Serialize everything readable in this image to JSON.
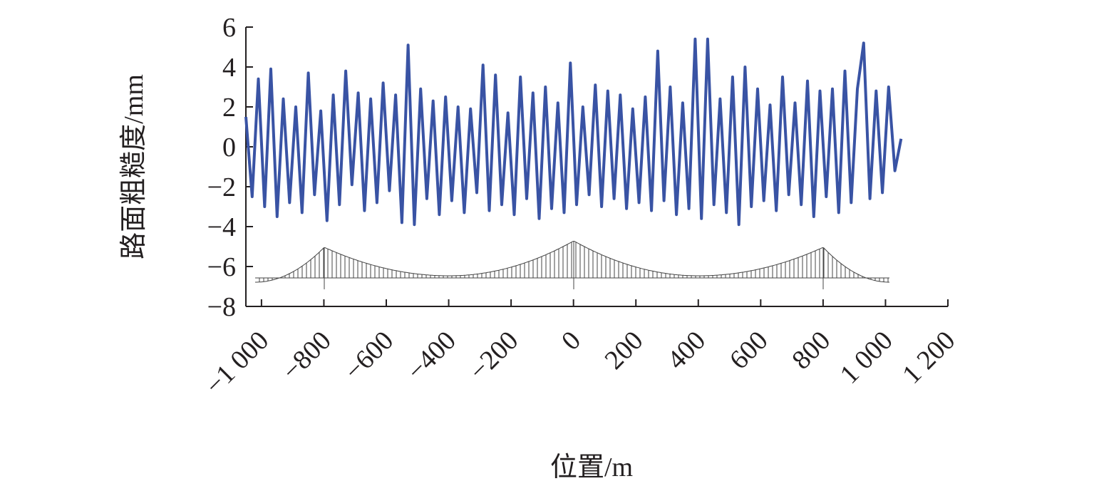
{
  "chart_data": {
    "type": "line",
    "xlabel": "位置/m",
    "ylabel": "路面粗糙度/mm",
    "xlim": [
      -1050,
      1200
    ],
    "ylim": [
      -8,
      6
    ],
    "xticks": [
      {
        "value": -1000,
        "label": "−1 000"
      },
      {
        "value": -800,
        "label": "−800"
      },
      {
        "value": -600,
        "label": "−600"
      },
      {
        "value": -400,
        "label": "−400"
      },
      {
        "value": -200,
        "label": "−200"
      },
      0,
      200,
      400,
      600,
      800,
      {
        "value": 1000,
        "label": "1 000"
      },
      {
        "value": 1200,
        "label": "1 200"
      }
    ],
    "yticks": [
      {
        "value": -8,
        "label": "−8"
      },
      {
        "value": -6,
        "label": "−6"
      },
      {
        "value": -4,
        "label": "−4"
      },
      {
        "value": -2,
        "label": "−2"
      },
      0,
      2,
      4,
      6
    ],
    "x": [
      -1050,
      -1030,
      -1010,
      -990,
      -970,
      -950,
      -930,
      -910,
      -890,
      -870,
      -850,
      -830,
      -810,
      -790,
      -770,
      -750,
      -730,
      -710,
      -690,
      -670,
      -650,
      -630,
      -610,
      -590,
      -570,
      -550,
      -530,
      -510,
      -490,
      -470,
      -450,
      -430,
      -410,
      -390,
      -370,
      -350,
      -330,
      -310,
      -290,
      -270,
      -250,
      -230,
      -210,
      -190,
      -170,
      -150,
      -130,
      -110,
      -90,
      -70,
      -50,
      -30,
      -10,
      10,
      30,
      50,
      70,
      90,
      110,
      130,
      150,
      170,
      190,
      210,
      230,
      250,
      270,
      290,
      310,
      330,
      350,
      370,
      390,
      410,
      430,
      450,
      470,
      490,
      510,
      530,
      550,
      570,
      590,
      610,
      630,
      650,
      670,
      690,
      710,
      730,
      750,
      770,
      790,
      810,
      830,
      850,
      870,
      890,
      910,
      930,
      950,
      970,
      990,
      1010,
      1030,
      1050
    ],
    "series": [
      {
        "name": "路面粗糙度",
        "color": "#3953a4",
        "values": [
          1.5,
          -2.5,
          3.4,
          -3.0,
          3.9,
          -3.5,
          2.4,
          -2.8,
          2.0,
          -3.3,
          3.7,
          -2.4,
          1.8,
          -3.7,
          2.6,
          -2.9,
          3.8,
          -1.9,
          2.7,
          -3.2,
          2.4,
          -2.8,
          3.2,
          -2.2,
          2.6,
          -3.8,
          5.1,
          -3.9,
          2.9,
          -2.6,
          2.3,
          -3.4,
          2.5,
          -2.7,
          2.0,
          -3.3,
          1.9,
          -2.3,
          4.1,
          -3.2,
          3.6,
          -2.9,
          1.7,
          -3.4,
          3.5,
          -2.6,
          2.7,
          -3.6,
          3.0,
          -3.1,
          2.2,
          -3.3,
          4.2,
          -2.9,
          2.0,
          -2.4,
          3.1,
          -3.0,
          2.8,
          -2.6,
          2.6,
          -3.1,
          1.9,
          -2.8,
          2.5,
          -3.2,
          4.8,
          -2.7,
          3.0,
          -3.4,
          2.2,
          -3.1,
          5.4,
          -3.6,
          5.4,
          -2.9,
          2.4,
          -3.3,
          3.5,
          -3.9,
          4.0,
          -3.0,
          2.9,
          -2.7,
          2.1,
          -3.2,
          3.5,
          -2.4,
          2.2,
          -2.9,
          3.3,
          -3.5,
          2.8,
          -2.5,
          2.9,
          -3.3,
          3.8,
          -2.8,
          2.9,
          5.2,
          -2.6,
          2.8,
          -2.3,
          3.0,
          -1.2,
          0.4
        ]
      }
    ]
  }
}
